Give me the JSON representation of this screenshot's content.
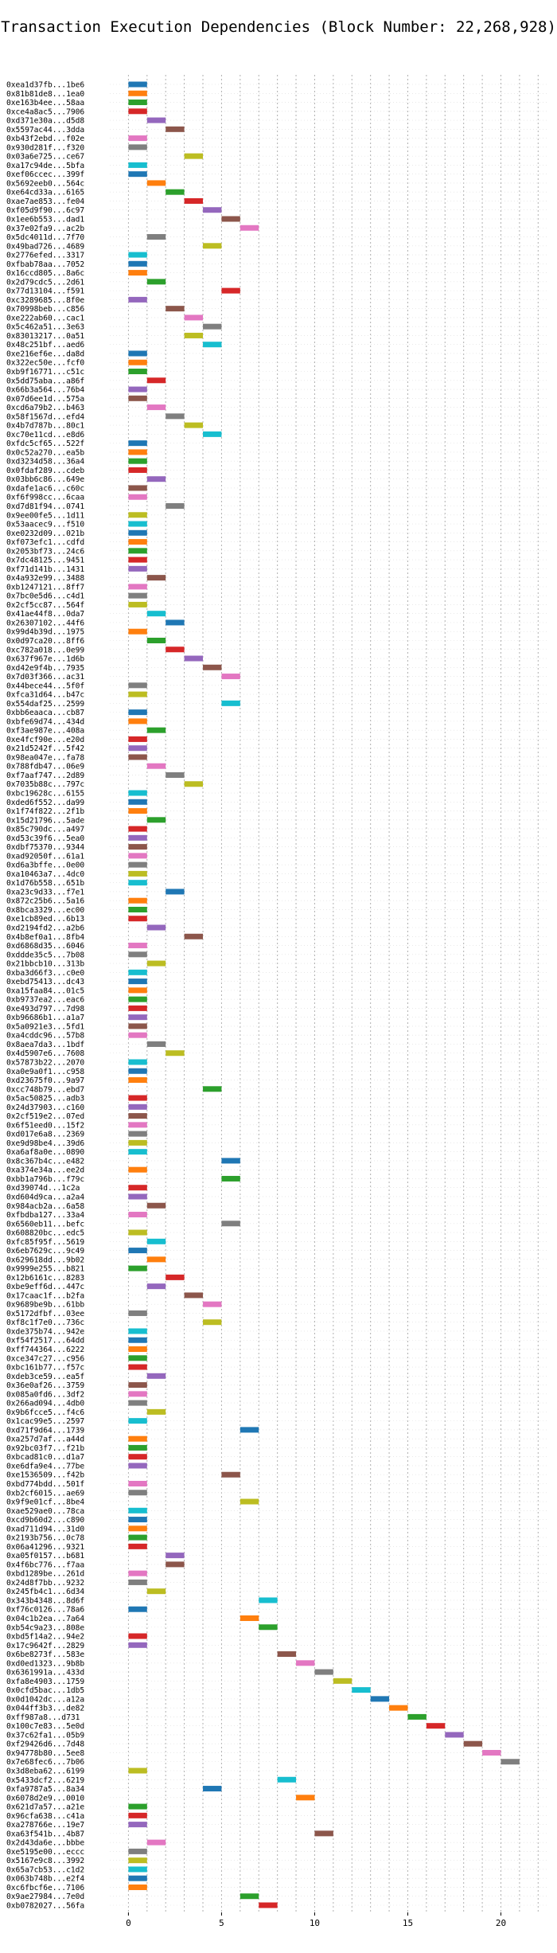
{
  "chart_data": {
    "type": "bar",
    "orientation": "horizontal",
    "title": "Transaction Execution Dependencies (Block Number: 22,268,928)",
    "xlabel": "",
    "ylabel": "",
    "xlim": [
      -1,
      22.5
    ],
    "xticks": [
      0,
      5,
      10,
      15,
      20
    ],
    "grid": true,
    "grid_style": "dotted",
    "legend": "none",
    "palette": [
      "#1f77b4",
      "#ff7f0e",
      "#2ca02c",
      "#d62728",
      "#9467bd",
      "#8c564b",
      "#e377c2",
      "#7f7f7f",
      "#bcbd22",
      "#17becf"
    ],
    "bars": [
      {
        "label": "0xea1d37fb...1be6",
        "start": 0,
        "end": 1
      },
      {
        "label": "0x81b81de8...1ea0",
        "start": 0,
        "end": 1
      },
      {
        "label": "0xe163b4ee...58aa",
        "start": 0,
        "end": 1
      },
      {
        "label": "0xce4a8ac5...7906",
        "start": 0,
        "end": 1
      },
      {
        "label": "0xd371e30a...d5d8",
        "start": 1,
        "end": 2
      },
      {
        "label": "0x5597ac44...3dda",
        "start": 2,
        "end": 3
      },
      {
        "label": "0xb43f2ebd...f02e",
        "start": 0,
        "end": 1
      },
      {
        "label": "0x930d281f...f320",
        "start": 0,
        "end": 1
      },
      {
        "label": "0x03a6e725...ce67",
        "start": 3,
        "end": 4
      },
      {
        "label": "0xa17c94de...5bfa",
        "start": 0,
        "end": 1
      },
      {
        "label": "0xef06ccec...399f",
        "start": 0,
        "end": 1
      },
      {
        "label": "0x5692eeb0...564c",
        "start": 1,
        "end": 2
      },
      {
        "label": "0xe64cd33a...6165",
        "start": 2,
        "end": 3
      },
      {
        "label": "0xae7ae853...fe04",
        "start": 3,
        "end": 4
      },
      {
        "label": "0xf05d9f90...6c97",
        "start": 4,
        "end": 5
      },
      {
        "label": "0x1ee6b553...dad1",
        "start": 5,
        "end": 6
      },
      {
        "label": "0x37e02fa9...ac2b",
        "start": 6,
        "end": 7
      },
      {
        "label": "0x5dc4011d...7f70",
        "start": 1,
        "end": 2
      },
      {
        "label": "0x49bad726...4689",
        "start": 4,
        "end": 5
      },
      {
        "label": "0x2776efed...3317",
        "start": 0,
        "end": 1
      },
      {
        "label": "0xfbab78aa...7052",
        "start": 0,
        "end": 1
      },
      {
        "label": "0x16ccd805...8a6c",
        "start": 0,
        "end": 1
      },
      {
        "label": "0x2d79cdc5...2d61",
        "start": 1,
        "end": 2
      },
      {
        "label": "0x77d13104...f591",
        "start": 5,
        "end": 6
      },
      {
        "label": "0xc3289685...8f0e",
        "start": 0,
        "end": 1
      },
      {
        "label": "0x70998beb...c856",
        "start": 2,
        "end": 3
      },
      {
        "label": "0xe222ab60...cac1",
        "start": 3,
        "end": 4
      },
      {
        "label": "0x5c462a51...3e63",
        "start": 4,
        "end": 5
      },
      {
        "label": "0x83013217...0a51",
        "start": 3,
        "end": 4
      },
      {
        "label": "0x48c251bf...aed6",
        "start": 4,
        "end": 5
      },
      {
        "label": "0xe216ef6e...da8d",
        "start": 0,
        "end": 1
      },
      {
        "label": "0x322ec50e...fcf0",
        "start": 0,
        "end": 1
      },
      {
        "label": "0xb9f16771...c51c",
        "start": 0,
        "end": 1
      },
      {
        "label": "0x5dd75aba...a86f",
        "start": 1,
        "end": 2
      },
      {
        "label": "0x66b3a564...76b4",
        "start": 0,
        "end": 1
      },
      {
        "label": "0x07d6ee1d...575a",
        "start": 0,
        "end": 1
      },
      {
        "label": "0xcd6a79b2...b463",
        "start": 1,
        "end": 2
      },
      {
        "label": "0x58f1567d...efd4",
        "start": 2,
        "end": 3
      },
      {
        "label": "0x4b7d787b...80c1",
        "start": 3,
        "end": 4
      },
      {
        "label": "0xc70e11cd...e8d6",
        "start": 4,
        "end": 5
      },
      {
        "label": "0xfdc5cf65...522f",
        "start": 0,
        "end": 1
      },
      {
        "label": "0x0c52a270...ea5b",
        "start": 0,
        "end": 1
      },
      {
        "label": "0xd3234d58...36a4",
        "start": 0,
        "end": 1
      },
      {
        "label": "0x0fdaf289...cdeb",
        "start": 0,
        "end": 1
      },
      {
        "label": "0x03bb6c86...649e",
        "start": 1,
        "end": 2
      },
      {
        "label": "0xdafe1ac6...c60c",
        "start": 0,
        "end": 1
      },
      {
        "label": "0xf6f998cc...6caa",
        "start": 0,
        "end": 1
      },
      {
        "label": "0xd7d81f94...0741",
        "start": 2,
        "end": 3
      },
      {
        "label": "0x9ee00fe5...1d11",
        "start": 0,
        "end": 1
      },
      {
        "label": "0x53aacec9...f510",
        "start": 0,
        "end": 1
      },
      {
        "label": "0xe0232d09...021b",
        "start": 0,
        "end": 1
      },
      {
        "label": "0xf073efc1...cdfd",
        "start": 0,
        "end": 1
      },
      {
        "label": "0x2053bf73...24c6",
        "start": 0,
        "end": 1
      },
      {
        "label": "0x7dc48125...9451",
        "start": 0,
        "end": 1
      },
      {
        "label": "0xf71d141b...1431",
        "start": 0,
        "end": 1
      },
      {
        "label": "0x4a932e99...3488",
        "start": 1,
        "end": 2
      },
      {
        "label": "0xb1247121...8ff7",
        "start": 0,
        "end": 1
      },
      {
        "label": "0x7bc0e5d6...c4d1",
        "start": 0,
        "end": 1
      },
      {
        "label": "0x2cf5cc87...564f",
        "start": 0,
        "end": 1
      },
      {
        "label": "0x41ae44f8...0da7",
        "start": 1,
        "end": 2
      },
      {
        "label": "0x26307102...44f6",
        "start": 2,
        "end": 3
      },
      {
        "label": "0x99d4b39d...1975",
        "start": 0,
        "end": 1
      },
      {
        "label": "0x0d97ca20...8ff6",
        "start": 1,
        "end": 2
      },
      {
        "label": "0xc782a018...0e99",
        "start": 2,
        "end": 3
      },
      {
        "label": "0x637f967e...1d6b",
        "start": 3,
        "end": 4
      },
      {
        "label": "0xd42e9f4b...7935",
        "start": 4,
        "end": 5
      },
      {
        "label": "0x7d03f366...ac31",
        "start": 5,
        "end": 6
      },
      {
        "label": "0x44bece44...5f0f",
        "start": 0,
        "end": 1
      },
      {
        "label": "0xfca31d64...b47c",
        "start": 0,
        "end": 1
      },
      {
        "label": "0x554daf25...2599",
        "start": 5,
        "end": 6
      },
      {
        "label": "0xbb6eaaca...cb87",
        "start": 0,
        "end": 1
      },
      {
        "label": "0xbfe69d74...434d",
        "start": 0,
        "end": 1
      },
      {
        "label": "0xf3ae987e...408a",
        "start": 1,
        "end": 2
      },
      {
        "label": "0xe4fcf90e...e20d",
        "start": 0,
        "end": 1
      },
      {
        "label": "0x21d5242f...5f42",
        "start": 0,
        "end": 1
      },
      {
        "label": "0x98ea047e...fa78",
        "start": 0,
        "end": 1
      },
      {
        "label": "0x788fdb47...06e9",
        "start": 1,
        "end": 2
      },
      {
        "label": "0xf7aaf747...2d89",
        "start": 2,
        "end": 3
      },
      {
        "label": "0x7035b88c...797c",
        "start": 3,
        "end": 4
      },
      {
        "label": "0xbc19628c...6155",
        "start": 0,
        "end": 1
      },
      {
        "label": "0xded6f552...da99",
        "start": 0,
        "end": 1
      },
      {
        "label": "0x1f74f822...2f1b",
        "start": 0,
        "end": 1
      },
      {
        "label": "0x15d21796...5ade",
        "start": 1,
        "end": 2
      },
      {
        "label": "0x85c790dc...a497",
        "start": 0,
        "end": 1
      },
      {
        "label": "0xd53c39f6...5ea0",
        "start": 0,
        "end": 1
      },
      {
        "label": "0xdbf75370...9344",
        "start": 0,
        "end": 1
      },
      {
        "label": "0xad92050f...61a1",
        "start": 0,
        "end": 1
      },
      {
        "label": "0xd6a3bffe...0e00",
        "start": 0,
        "end": 1
      },
      {
        "label": "0xa10463a7...4dc0",
        "start": 0,
        "end": 1
      },
      {
        "label": "0x1d76b558...651b",
        "start": 0,
        "end": 1
      },
      {
        "label": "0xa23c9d33...f7e1",
        "start": 2,
        "end": 3
      },
      {
        "label": "0x872c25b6...5a16",
        "start": 0,
        "end": 1
      },
      {
        "label": "0x8bca3329...ec00",
        "start": 0,
        "end": 1
      },
      {
        "label": "0xe1cb89ed...6b13",
        "start": 0,
        "end": 1
      },
      {
        "label": "0xd2194fd2...a2b6",
        "start": 1,
        "end": 2
      },
      {
        "label": "0x4b8ef0a1...8fb4",
        "start": 3,
        "end": 4
      },
      {
        "label": "0xd6868d35...6046",
        "start": 0,
        "end": 1
      },
      {
        "label": "0xddde35c5...7b08",
        "start": 0,
        "end": 1
      },
      {
        "label": "0x21bbcb10...313b",
        "start": 1,
        "end": 2
      },
      {
        "label": "0xba3d66f3...c0e0",
        "start": 0,
        "end": 1
      },
      {
        "label": "0xebd75413...dc43",
        "start": 0,
        "end": 1
      },
      {
        "label": "0xa15faa84...01c5",
        "start": 0,
        "end": 1
      },
      {
        "label": "0xb9737ea2...eac6",
        "start": 0,
        "end": 1
      },
      {
        "label": "0xe493d797...7d98",
        "start": 0,
        "end": 1
      },
      {
        "label": "0xb96686b1...a1a7",
        "start": 0,
        "end": 1
      },
      {
        "label": "0x5a0921e3...5fd1",
        "start": 0,
        "end": 1
      },
      {
        "label": "0xa4cddc96...57b8",
        "start": 0,
        "end": 1
      },
      {
        "label": "0x8aea7da3...1bdf",
        "start": 1,
        "end": 2
      },
      {
        "label": "0x4d5907e6...7608",
        "start": 2,
        "end": 3
      },
      {
        "label": "0x57873b22...2070",
        "start": 0,
        "end": 1
      },
      {
        "label": "0xa0e9a0f1...c958",
        "start": 0,
        "end": 1
      },
      {
        "label": "0xd23675f0...9a97",
        "start": 0,
        "end": 1
      },
      {
        "label": "0xcc748b79...ebd7",
        "start": 4,
        "end": 5
      },
      {
        "label": "0x5ac50825...adb3",
        "start": 0,
        "end": 1
      },
      {
        "label": "0x24d37903...c160",
        "start": 0,
        "end": 1
      },
      {
        "label": "0x2cf519e2...07ed",
        "start": 0,
        "end": 1
      },
      {
        "label": "0x6f51eed0...15f2",
        "start": 0,
        "end": 1
      },
      {
        "label": "0xd017e6a8...2369",
        "start": 0,
        "end": 1
      },
      {
        "label": "0xe9d98be4...39d6",
        "start": 0,
        "end": 1
      },
      {
        "label": "0xa6af8a0e...0890",
        "start": 0,
        "end": 1
      },
      {
        "label": "0x8c367b4c...e482",
        "start": 5,
        "end": 6
      },
      {
        "label": "0xa374e34a...ee2d",
        "start": 0,
        "end": 1
      },
      {
        "label": "0xbb1a796b...f79c",
        "start": 5,
        "end": 6
      },
      {
        "label": "0xd39074d...1c2a",
        "start": 0,
        "end": 1
      },
      {
        "label": "0xd604d9ca...a2a4",
        "start": 0,
        "end": 1
      },
      {
        "label": "0x984acb2a...6a58",
        "start": 1,
        "end": 2
      },
      {
        "label": "0xfbdba127...33a4",
        "start": 0,
        "end": 1
      },
      {
        "label": "0x6560eb11...befc",
        "start": 5,
        "end": 6
      },
      {
        "label": "0x608820bc...edc5",
        "start": 0,
        "end": 1
      },
      {
        "label": "0xfc85f95f...5619",
        "start": 1,
        "end": 2
      },
      {
        "label": "0x6eb7629c...9c49",
        "start": 0,
        "end": 1
      },
      {
        "label": "0x629618dd...9b02",
        "start": 1,
        "end": 2
      },
      {
        "label": "0x9999e255...b821",
        "start": 0,
        "end": 1
      },
      {
        "label": "0x12b6161c...8283",
        "start": 2,
        "end": 3
      },
      {
        "label": "0xbe9eff6d...447c",
        "start": 1,
        "end": 2
      },
      {
        "label": "0x17caac1f...b2fa",
        "start": 3,
        "end": 4
      },
      {
        "label": "0x9689be9b...61bb",
        "start": 4,
        "end": 5
      },
      {
        "label": "0x5172dfbf...03ee",
        "start": 0,
        "end": 1
      },
      {
        "label": "0xf8c1f7e0...736c",
        "start": 4,
        "end": 5
      },
      {
        "label": "0xde375b74...942e",
        "start": 0,
        "end": 1
      },
      {
        "label": "0xf54f2517...64dd",
        "start": 0,
        "end": 1
      },
      {
        "label": "0xff744364...6222",
        "start": 0,
        "end": 1
      },
      {
        "label": "0xce347c27...c956",
        "start": 0,
        "end": 1
      },
      {
        "label": "0xbc161b77...f57c",
        "start": 0,
        "end": 1
      },
      {
        "label": "0xdeb3ce59...ea5f",
        "start": 1,
        "end": 2
      },
      {
        "label": "0x36e0af26...3759",
        "start": 0,
        "end": 1
      },
      {
        "label": "0x085a0fd6...3df2",
        "start": 0,
        "end": 1
      },
      {
        "label": "0x266ad094...4db0",
        "start": 0,
        "end": 1
      },
      {
        "label": "0x9b6fcce5...f4c6",
        "start": 1,
        "end": 2
      },
      {
        "label": "0x1cac99e5...2597",
        "start": 0,
        "end": 1
      },
      {
        "label": "0xd71f9d64...1739",
        "start": 6,
        "end": 7
      },
      {
        "label": "0xa257d7af...a44d",
        "start": 0,
        "end": 1
      },
      {
        "label": "0x92bc03f7...f21b",
        "start": 0,
        "end": 1
      },
      {
        "label": "0xbcad81c0...d1a7",
        "start": 0,
        "end": 1
      },
      {
        "label": "0xe6dfa9e4...77be",
        "start": 0,
        "end": 1
      },
      {
        "label": "0xe1536509...f42b",
        "start": 5,
        "end": 6
      },
      {
        "label": "0xbd774bdd...501f",
        "start": 0,
        "end": 1
      },
      {
        "label": "0xb2cf6015...ae69",
        "start": 0,
        "end": 1
      },
      {
        "label": "0x9f9e01cf...8be4",
        "start": 6,
        "end": 7
      },
      {
        "label": "0xae529ae0...78ca",
        "start": 0,
        "end": 1
      },
      {
        "label": "0xcd9b60d2...c890",
        "start": 0,
        "end": 1
      },
      {
        "label": "0xad711d94...31d0",
        "start": 0,
        "end": 1
      },
      {
        "label": "0x2193b756...0c78",
        "start": 0,
        "end": 1
      },
      {
        "label": "0x06a41296...9321",
        "start": 0,
        "end": 1
      },
      {
        "label": "0xa05f0157...b681",
        "start": 2,
        "end": 3
      },
      {
        "label": "0x4f6bc776...f7aa",
        "start": 2,
        "end": 3
      },
      {
        "label": "0xbd1289be...261d",
        "start": 0,
        "end": 1
      },
      {
        "label": "0x24d8f7bb...9232",
        "start": 0,
        "end": 1
      },
      {
        "label": "0x245fb4c1...6d34",
        "start": 1,
        "end": 2
      },
      {
        "label": "0x343b4348...8d6f",
        "start": 7,
        "end": 8
      },
      {
        "label": "0xf76c0126...78a6",
        "start": 0,
        "end": 1
      },
      {
        "label": "0x04c1b2ea...7a64",
        "start": 6,
        "end": 7
      },
      {
        "label": "0xb54c9a23...808e",
        "start": 7,
        "end": 8
      },
      {
        "label": "0xbd5f14a2...94e2",
        "start": 0,
        "end": 1
      },
      {
        "label": "0x17c9642f...2829",
        "start": 0,
        "end": 1
      },
      {
        "label": "0x6be8273f...583e",
        "start": 8,
        "end": 9
      },
      {
        "label": "0xd0ed1323...9b8b",
        "start": 9,
        "end": 10
      },
      {
        "label": "0x6361991a...433d",
        "start": 10,
        "end": 11
      },
      {
        "label": "0xfa8e4903...1759",
        "start": 11,
        "end": 12
      },
      {
        "label": "0x0cfd5bac...1db5",
        "start": 12,
        "end": 13
      },
      {
        "label": "0x0d1042dc...a12a",
        "start": 13,
        "end": 14
      },
      {
        "label": "0x044ff3b3...de82",
        "start": 14,
        "end": 15
      },
      {
        "label": "0xff987a8...d731",
        "start": 15,
        "end": 16
      },
      {
        "label": "0x100c7e83...5e0d",
        "start": 16,
        "end": 17
      },
      {
        "label": "0x37c62fa1...05b9",
        "start": 17,
        "end": 18
      },
      {
        "label": "0xf29426d6...7d48",
        "start": 18,
        "end": 19
      },
      {
        "label": "0x94778b80...5ee8",
        "start": 19,
        "end": 20
      },
      {
        "label": "0x7e68fec6...7b06",
        "start": 20,
        "end": 21
      },
      {
        "label": "0x3d8eba62...6199",
        "start": 0,
        "end": 1
      },
      {
        "label": "0x5433dcf2...6219",
        "start": 8,
        "end": 9
      },
      {
        "label": "0xfa9787a5...8a34",
        "start": 4,
        "end": 5
      },
      {
        "label": "0x6078d2e9...0010",
        "start": 9,
        "end": 10
      },
      {
        "label": "0x621d7a57...a21e",
        "start": 0,
        "end": 1
      },
      {
        "label": "0x96cfa638...c41a",
        "start": 0,
        "end": 1
      },
      {
        "label": "0xa278766e...19e7",
        "start": 0,
        "end": 1
      },
      {
        "label": "0xa63f541b...4b87",
        "start": 10,
        "end": 11
      },
      {
        "label": "0x2d43da6e...bbbe",
        "start": 1,
        "end": 2
      },
      {
        "label": "0xe5195e00...eccc",
        "start": 0,
        "end": 1
      },
      {
        "label": "0x5167e9c8...3992",
        "start": 0,
        "end": 1
      },
      {
        "label": "0x65a7cb53...c1d2",
        "start": 0,
        "end": 1
      },
      {
        "label": "0x063b748b...e2f4",
        "start": 0,
        "end": 1
      },
      {
        "label": "0xc6fbcf6e...7106",
        "start": 0,
        "end": 1
      },
      {
        "label": "0x9ae27984...7e0d",
        "start": 6,
        "end": 7
      },
      {
        "label": "0xb0782027...56fa",
        "start": 7,
        "end": 8
      }
    ]
  }
}
